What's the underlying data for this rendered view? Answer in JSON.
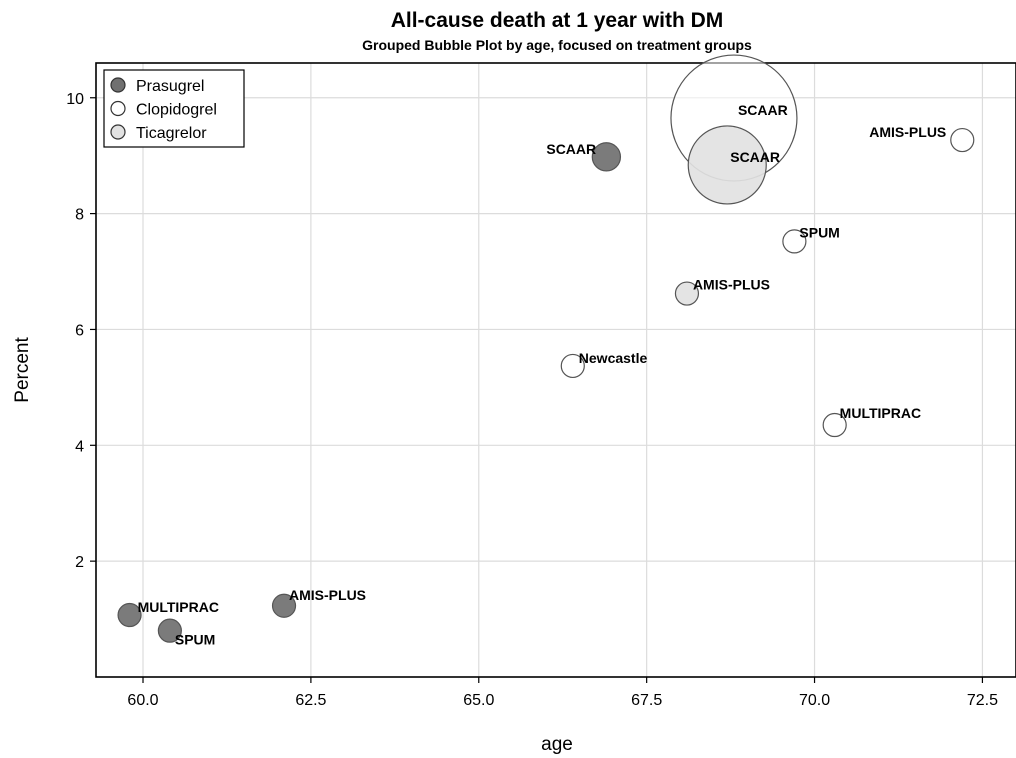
{
  "chart_data": {
    "type": "scatter",
    "subtype": "bubble",
    "title": "All-cause death at 1 year with DM",
    "subtitle": "Grouped Bubble Plot by age, focused on treatment groups",
    "xlabel": "age",
    "ylabel": "Percent",
    "xlim": [
      59.3,
      73.0
    ],
    "ylim": [
      0.0,
      10.6
    ],
    "xticks": [
      60.0,
      62.5,
      65.0,
      67.5,
      70.0,
      72.5
    ],
    "xtick_labels": [
      "60.0",
      "62.5",
      "65.0",
      "67.5",
      "70.0",
      "72.5"
    ],
    "yticks": [
      2,
      4,
      6,
      8,
      10
    ],
    "ytick_labels": [
      "2",
      "4",
      "6",
      "8",
      "10"
    ],
    "grid": true,
    "legend_position": "top-left",
    "series": [
      {
        "name": "Prasugrel",
        "color": "#707070",
        "points": [
          {
            "label": "SCAAR",
            "x": 66.9,
            "y": 8.98,
            "size": 3
          },
          {
            "label": "MULTIPRAC",
            "x": 59.8,
            "y": 1.07,
            "size": 2
          },
          {
            "label": "SPUM",
            "x": 60.4,
            "y": 0.8,
            "size": 2
          },
          {
            "label": "AMIS-PLUS",
            "x": 62.1,
            "y": 1.23,
            "size": 2
          }
        ]
      },
      {
        "name": "Clopidogrel",
        "color": "#ffffff",
        "points": [
          {
            "label": "SCAAR",
            "x": 68.8,
            "y": 9.65,
            "size": 60
          },
          {
            "label": "AMIS-PLUS",
            "x": 72.2,
            "y": 9.27,
            "size": 2
          },
          {
            "label": "SPUM",
            "x": 69.7,
            "y": 7.52,
            "size": 2
          },
          {
            "label": "Newcastle",
            "x": 66.4,
            "y": 5.37,
            "size": 2
          },
          {
            "label": "MULTIPRAC",
            "x": 70.3,
            "y": 4.35,
            "size": 2
          }
        ]
      },
      {
        "name": "Ticagrelor",
        "color": "#e2e2e2",
        "points": [
          {
            "label": "SCAAR",
            "x": 68.7,
            "y": 8.84,
            "size": 23
          },
          {
            "label": "AMIS-PLUS",
            "x": 68.1,
            "y": 6.62,
            "size": 2
          }
        ]
      }
    ]
  }
}
